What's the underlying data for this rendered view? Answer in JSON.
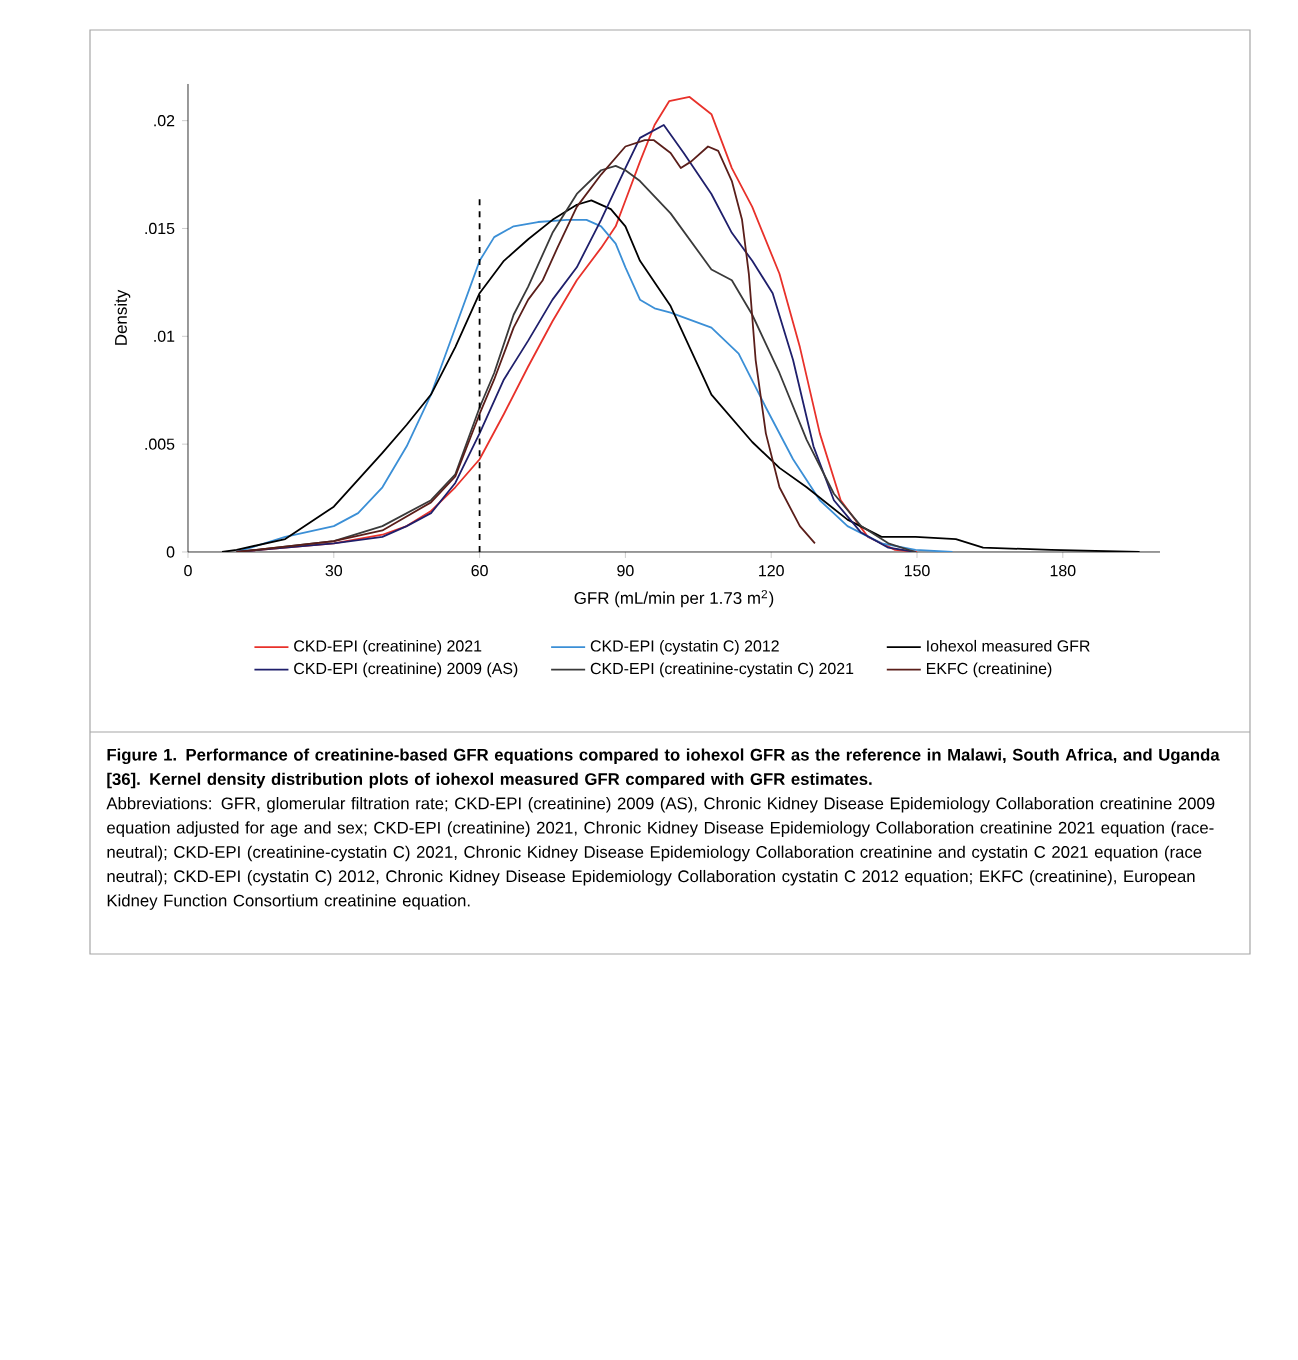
{
  "chart_data": {
    "type": "line",
    "xlabel": "GFR (mL/min per 1.73 m$^{2}$)",
    "ylabel": "Density",
    "xlim": [
      0,
      200
    ],
    "ylim": [
      0,
      0.0217
    ],
    "xticks": [
      0,
      30,
      60,
      90,
      120,
      150,
      180
    ],
    "yticks": [
      {
        "value": 0,
        "label": "0"
      },
      {
        "value": 0.005,
        "label": ".005"
      },
      {
        "value": 0.01,
        "label": ".01"
      },
      {
        "value": 0.015,
        "label": ".015"
      },
      {
        "value": 0.02,
        "label": ".02"
      }
    ],
    "legend": "bottom",
    "marker": "none",
    "line_style": "solid",
    "ref_lines": [
      {
        "axis": "x",
        "value": 60,
        "color": "#000000",
        "line_style": "dashed"
      }
    ],
    "series": [
      {
        "name": "CKD-EPI (creatinine) 2021",
        "color": "#e8312a",
        "x": [
          10,
          30,
          40,
          45,
          50,
          55,
          60,
          65,
          70,
          75,
          80,
          85,
          88,
          90,
          93,
          96,
          99,
          103.2,
          107.7,
          111.9,
          116.1,
          121.7,
          125.9,
          130,
          134.3,
          139.9,
          145.5,
          150
        ],
        "values": [
          0,
          0.0004,
          0.0008,
          0.0012,
          0.0019,
          0.003,
          0.0043,
          0.0064,
          0.0086,
          0.0107,
          0.0126,
          0.0141,
          0.0151,
          0.0163,
          0.0181,
          0.0198,
          0.0209,
          0.0211,
          0.0203,
          0.0178,
          0.016,
          0.0129,
          0.0095,
          0.0055,
          0.0024,
          0.0007,
          0.0001,
          0
        ]
      },
      {
        "name": "CKD-EPI (cystatin C) 2012",
        "color": "#3b8fd6",
        "x": [
          10,
          20,
          30,
          35,
          40,
          45,
          50,
          55,
          60,
          63,
          67,
          72,
          78,
          82,
          85,
          88,
          90,
          93,
          96,
          99.3,
          107.7,
          113.3,
          118.9,
          124.5,
          130,
          135.7,
          142.7,
          149.7,
          157.3
        ],
        "values": [
          0,
          0.0007,
          0.0012,
          0.0018,
          0.003,
          0.0049,
          0.0073,
          0.0104,
          0.0135,
          0.0146,
          0.0151,
          0.0153,
          0.0154,
          0.0154,
          0.0151,
          0.0143,
          0.0132,
          0.0117,
          0.0113,
          0.0111,
          0.0104,
          0.0092,
          0.0067,
          0.0043,
          0.0024,
          0.0012,
          0.0004,
          0.0001,
          0
        ]
      },
      {
        "name": "Iohexol measured GFR",
        "color": "#000000",
        "x": [
          7,
          10,
          20,
          30,
          40,
          45,
          50,
          55,
          60,
          65,
          70,
          75,
          80,
          83,
          87,
          90,
          93,
          99.3,
          107.7,
          116.1,
          121.7,
          127.3,
          135.7,
          142.7,
          149.7,
          158,
          163.6,
          177.6,
          195.8
        ],
        "values": [
          0,
          0.0001,
          0.0006,
          0.0021,
          0.0046,
          0.0059,
          0.0073,
          0.0095,
          0.012,
          0.0135,
          0.0145,
          0.0154,
          0.0161,
          0.0163,
          0.0159,
          0.0151,
          0.0135,
          0.0114,
          0.0073,
          0.0051,
          0.0039,
          0.003,
          0.0015,
          0.0007,
          0.0007,
          0.0006,
          0.0002,
          0.0001,
          0
        ]
      },
      {
        "name": "CKD-EPI (creatinine) 2009 (AS)",
        "color": "#1f1f6b",
        "x": [
          10,
          30,
          40,
          45,
          50,
          55,
          60,
          65,
          70,
          75,
          80,
          85,
          90,
          93,
          97.9,
          102,
          107.7,
          111.9,
          116.1,
          120.3,
          124.5,
          128.7,
          132.9,
          138.5,
          144.1,
          149.7
        ],
        "values": [
          0,
          0.0004,
          0.0007,
          0.0012,
          0.0018,
          0.0032,
          0.0055,
          0.008,
          0.0098,
          0.0117,
          0.0132,
          0.0154,
          0.0178,
          0.0192,
          0.0198,
          0.0185,
          0.0166,
          0.0148,
          0.0135,
          0.012,
          0.0089,
          0.0049,
          0.0024,
          0.0009,
          0.0002,
          0
        ]
      },
      {
        "name": "CKD-EPI (creatinine-cystatin C) 2021",
        "color": "#3a3a3a",
        "x": [
          10,
          30,
          40,
          50,
          55,
          60,
          63,
          67,
          70,
          75,
          80,
          85,
          88,
          90,
          93,
          99.3,
          103.5,
          107.7,
          111.9,
          116.1,
          121.7,
          127.3,
          132.9,
          138.5,
          144.1,
          149.7
        ],
        "values": [
          0,
          0.0005,
          0.0012,
          0.0024,
          0.0036,
          0.0067,
          0.0083,
          0.011,
          0.0123,
          0.0148,
          0.0166,
          0.0177,
          0.0179,
          0.0177,
          0.0172,
          0.0157,
          0.0144,
          0.0131,
          0.0126,
          0.011,
          0.0083,
          0.0052,
          0.0027,
          0.0012,
          0.0004,
          0
        ]
      },
      {
        "name": "EKFC (creatinine)",
        "color": "#5a1e1a",
        "x": [
          10,
          30,
          40,
          50,
          55,
          60,
          63,
          67,
          70,
          73,
          76,
          80,
          85,
          90,
          94,
          95.8,
          99.3,
          101.4,
          103.5,
          107,
          109.1,
          111.9,
          114,
          115.4,
          116.8,
          118.9,
          121.7,
          125.9,
          129
        ],
        "values": [
          0,
          0.0005,
          0.001,
          0.0023,
          0.0035,
          0.0064,
          0.008,
          0.0104,
          0.0117,
          0.0126,
          0.0141,
          0.016,
          0.0175,
          0.0188,
          0.0191,
          0.0191,
          0.0185,
          0.0178,
          0.0181,
          0.0188,
          0.0186,
          0.0172,
          0.0154,
          0.0129,
          0.0089,
          0.0055,
          0.003,
          0.0012,
          0.0004
        ]
      }
    ],
    "annotations": [
      "Figure 1.  Performance of creatinine-based GFR equations compared to iohexol GFR as the reference in Malawi, South Africa, and Uganda [36]. Kernel density distribution plots of iohexol measured GFR compared with GFR estimates.",
      "Abbreviations: GFR, glomerular filtration rate; CKD-EPI (creatinine) 2009 (AS), Chronic Kidney Disease Epidemiology Collaboration creatinine 2009 equation adjusted for age and sex; CKD-EPI (creatinine) 2021, Chronic Kidney Disease Epidemiology Collaboration creatinine 2021 equation (race-neutral); CKD-EPI (creatinine-cystatin C) 2021, Chronic Kidney Disease Epidemiology Collaboration creatinine and cystatin C 2021 equation (race neutral); CKD-EPI (cystatin C) 2012, Chronic Kidney Disease Epidemiology Collaboration cystatin C 2012 equation; EKFC (creatinine), European Kidney Function Consortium creatinine equation."
    ]
  }
}
